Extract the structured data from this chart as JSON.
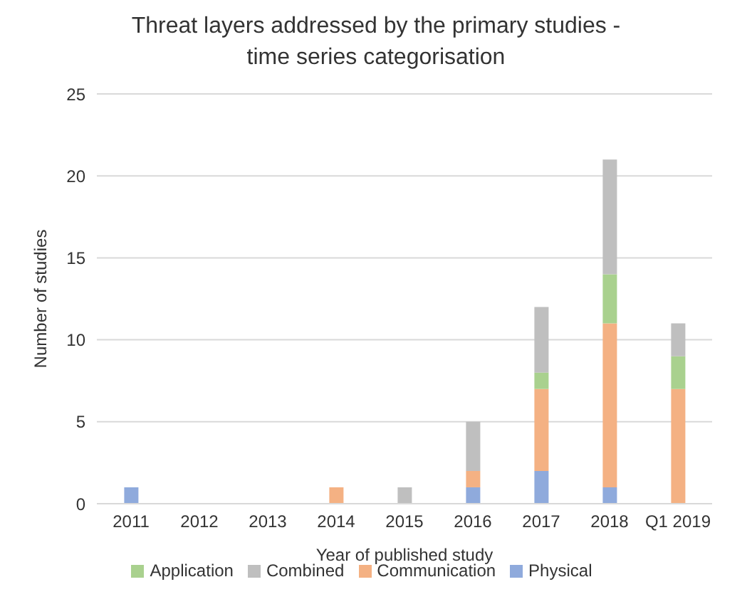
{
  "chart_data": {
    "type": "bar",
    "title": "Threat layers addressed by the primary studies -\ntime series categorisation",
    "xlabel": "Year of published study",
    "ylabel": "Number of studies",
    "categories": [
      "2011",
      "2012",
      "2013",
      "2014",
      "2015",
      "2016",
      "2017",
      "2018",
      "Q1 2019"
    ],
    "stacked": true,
    "series": [
      {
        "name": "Physical",
        "color": "#8faadc",
        "values": [
          1,
          0,
          0,
          0,
          0,
          1,
          2,
          1,
          0
        ]
      },
      {
        "name": "Communication",
        "color": "#f4b183",
        "values": [
          0,
          0,
          0,
          1,
          0,
          1,
          5,
          10,
          7
        ]
      },
      {
        "name": "Application",
        "color": "#a9d18e",
        "values": [
          0,
          0,
          0,
          0,
          0,
          0,
          1,
          3,
          2
        ]
      },
      {
        "name": "Combined",
        "color": "#bfbfbf",
        "values": [
          0,
          0,
          0,
          0,
          1,
          3,
          4,
          7,
          2
        ]
      }
    ],
    "ylim": [
      0,
      25
    ],
    "yticks": [
      0,
      5,
      10,
      15,
      20,
      25
    ],
    "grid": "y",
    "legend": "bottom"
  }
}
